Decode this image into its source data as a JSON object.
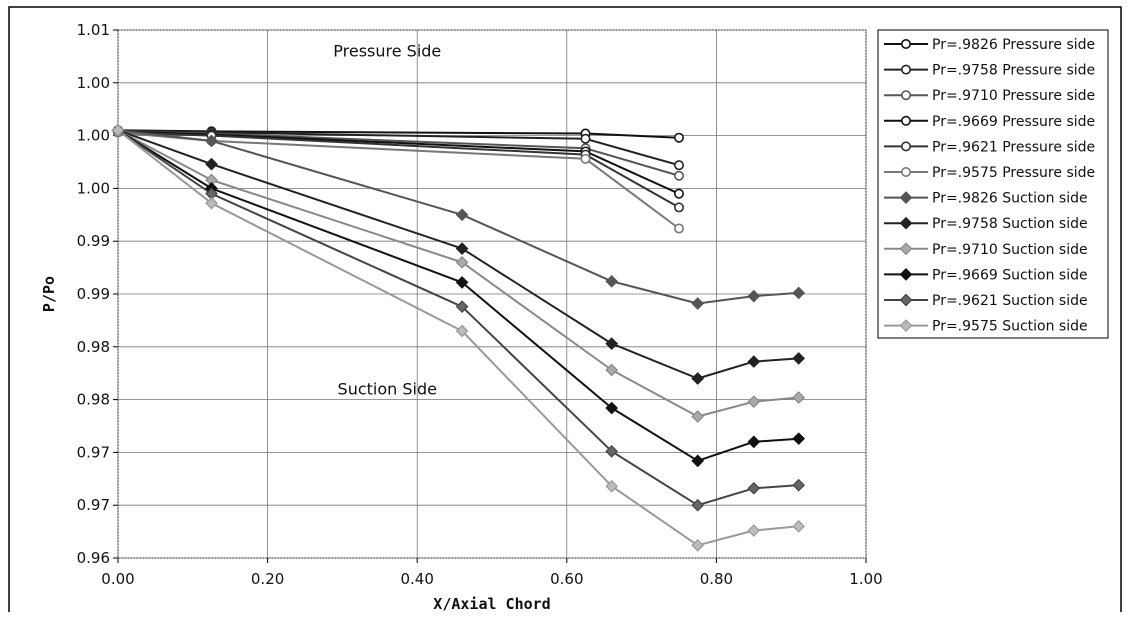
{
  "chart_data": {
    "type": "line",
    "xlabel": "X/Axial  Chord",
    "ylabel": "P/Po",
    "xlim": [
      0,
      1
    ],
    "ylim": [
      0.96,
      1.01
    ],
    "x_ticks": [
      0,
      0.2,
      0.4,
      0.6,
      0.8,
      1.0
    ],
    "x_tick_labels": [
      "0.00",
      "0.20",
      "0.40",
      "0.60",
      "0.80",
      "1.00"
    ],
    "y_ticks": [
      0.96,
      0.965,
      0.97,
      0.975,
      0.98,
      0.985,
      0.99,
      0.995,
      1.0,
      1.005,
      1.01
    ],
    "y_tick_labels": [
      "0.96",
      "0.97",
      "0.97",
      "0.98",
      "0.98",
      "0.99",
      "0.99",
      "1.00",
      "1.00",
      "1.00",
      "1.01"
    ],
    "grid": true,
    "legend_position": "right",
    "annotations": [
      {
        "text": "Pressure Side",
        "x": 0.36,
        "y": 1.0075
      },
      {
        "text": "Suction Side",
        "x": 0.36,
        "y": 0.9755
      }
    ],
    "series": [
      {
        "name": "Pr=.9826 Pressure side",
        "color": "#111111",
        "marker": "circle",
        "fill": "#ffffff",
        "x": [
          0,
          0.125,
          0.625,
          0.75
        ],
        "y": [
          1.0005,
          1.0004,
          1.0002,
          0.9998
        ]
      },
      {
        "name": "Pr=.9758 Pressure side",
        "color": "#222222",
        "marker": "circle",
        "fill": "#ffffff",
        "x": [
          0,
          0.125,
          0.625,
          0.75
        ],
        "y": [
          1.0005,
          1.0003,
          0.9997,
          0.9972
        ]
      },
      {
        "name": "Pr=.9710 Pressure side",
        "color": "#555555",
        "marker": "circle",
        "fill": "#ffffff",
        "x": [
          0,
          0.125,
          0.625,
          0.75
        ],
        "y": [
          1.0004,
          1.0002,
          0.9988,
          0.9962
        ]
      },
      {
        "name": "Pr=.9669 Pressure side",
        "color": "#111111",
        "marker": "circle",
        "fill": "#ffffff",
        "x": [
          0,
          0.125,
          0.625,
          0.75
        ],
        "y": [
          1.0004,
          1.0001,
          0.9985,
          0.9945
        ]
      },
      {
        "name": "Pr=.9621 Pressure side",
        "color": "#333333",
        "marker": "circle",
        "fill": "#ffffff",
        "x": [
          0,
          0.125,
          0.625,
          0.75
        ],
        "y": [
          1.0003,
          1.0,
          0.9982,
          0.9932
        ]
      },
      {
        "name": "Pr=.9575 Pressure side",
        "color": "#777777",
        "marker": "circle",
        "fill": "#ffffff",
        "x": [
          0,
          0.125,
          0.625,
          0.75
        ],
        "y": [
          1.0003,
          0.9995,
          0.9978,
          0.9912
        ]
      },
      {
        "name": "Pr=.9826 Suction side",
        "color": "#555555",
        "marker": "diamond",
        "fill": "#555555",
        "x": [
          0,
          0.125,
          0.46,
          0.66,
          0.775,
          0.85,
          0.91
        ],
        "y": [
          1.0005,
          0.9995,
          0.9925,
          0.9862,
          0.9841,
          0.9848,
          0.9851
        ]
      },
      {
        "name": "Pr=.9758 Suction side",
        "color": "#222222",
        "marker": "diamond",
        "fill": "#222222",
        "x": [
          0,
          0.125,
          0.46,
          0.66,
          0.775,
          0.85,
          0.91
        ],
        "y": [
          1.0005,
          0.9973,
          0.9893,
          0.9803,
          0.977,
          0.9786,
          0.9789
        ]
      },
      {
        "name": "Pr=.9710 Suction side",
        "color": "#888888",
        "marker": "diamond",
        "fill": "#aaaaaa",
        "x": [
          0,
          0.125,
          0.46,
          0.66,
          0.775,
          0.85,
          0.91
        ],
        "y": [
          1.0005,
          0.9958,
          0.988,
          0.9778,
          0.9734,
          0.9748,
          0.9752
        ]
      },
      {
        "name": "Pr=.9669 Suction side",
        "color": "#111111",
        "marker": "diamond",
        "fill": "#111111",
        "x": [
          0,
          0.125,
          0.46,
          0.66,
          0.775,
          0.85,
          0.91
        ],
        "y": [
          1.0005,
          0.995,
          0.9861,
          0.9742,
          0.9692,
          0.971,
          0.9713
        ]
      },
      {
        "name": "Pr=.9621 Suction side",
        "color": "#444444",
        "marker": "diamond",
        "fill": "#666666",
        "x": [
          0,
          0.125,
          0.46,
          0.66,
          0.775,
          0.85,
          0.91
        ],
        "y": [
          1.0005,
          0.9945,
          0.9838,
          0.9701,
          0.965,
          0.9666,
          0.9669
        ]
      },
      {
        "name": "Pr=.9575 Suction side",
        "color": "#999999",
        "marker": "diamond",
        "fill": "#bbbbbb",
        "x": [
          0,
          0.125,
          0.46,
          0.66,
          0.775,
          0.85,
          0.91
        ],
        "y": [
          1.0005,
          0.9936,
          0.9815,
          0.9668,
          0.9612,
          0.9626,
          0.963
        ]
      }
    ]
  }
}
